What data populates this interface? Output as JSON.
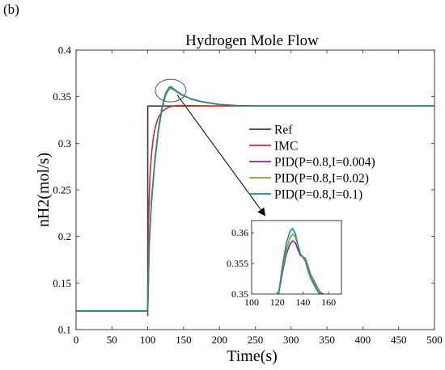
{
  "panel_label": "(b)",
  "chart_data": [
    {
      "id": "main",
      "type": "line",
      "title": "Hydrogen Mole Flow",
      "xlabel": "Time(s)",
      "ylabel": "nH2(mol/s)",
      "xlim": [
        0,
        500
      ],
      "ylim": [
        0.1,
        0.4
      ],
      "xticks": [
        0,
        50,
        100,
        150,
        200,
        250,
        300,
        350,
        400,
        450,
        500
      ],
      "yticks": [
        0.1,
        0.15,
        0.2,
        0.25,
        0.3,
        0.35,
        0.4
      ],
      "ytick_labels": [
        "0.1",
        "0.15",
        "0.2",
        "0.25",
        "0.3",
        "0.35",
        "0.4"
      ],
      "grid": false,
      "legend_position": "center-right",
      "series": [
        {
          "name": "Ref",
          "color": "#3a3a3a",
          "x": [
            0,
            100,
            100,
            500
          ],
          "y": [
            0.12,
            0.12,
            0.34,
            0.34
          ]
        },
        {
          "name": "IMC",
          "color": "#d62728",
          "x": [
            0,
            100,
            100,
            101,
            103,
            105,
            108,
            111,
            115,
            120,
            125,
            130,
            140,
            150,
            170,
            200,
            300,
            500
          ],
          "y": [
            0.12,
            0.12,
            0.115,
            0.215,
            0.262,
            0.287,
            0.307,
            0.319,
            0.328,
            0.334,
            0.337,
            0.339,
            0.3405,
            0.3405,
            0.3402,
            0.34,
            0.34,
            0.34
          ]
        },
        {
          "name": "PID(P=0.8,I=0.004)",
          "color": "#7e2f8e",
          "x": [
            0,
            100,
            100,
            102,
            105,
            110,
            115,
            120,
            125,
            130,
            133,
            136,
            140,
            145,
            150,
            160,
            175,
            200,
            225,
            250,
            300,
            400,
            500
          ],
          "y": [
            0.12,
            0.12,
            0.12,
            0.19,
            0.235,
            0.281,
            0.314,
            0.337,
            0.352,
            0.3585,
            0.359,
            0.3575,
            0.3555,
            0.353,
            0.351,
            0.3475,
            0.3445,
            0.3415,
            0.3405,
            0.34,
            0.34,
            0.34,
            0.34
          ]
        },
        {
          "name": "PID(P=0.8,I=0.02)",
          "color": "#77ac30",
          "x": [
            0,
            100,
            100,
            102,
            105,
            110,
            115,
            120,
            125,
            130,
            133,
            136,
            140,
            145,
            150,
            160,
            175,
            200,
            225,
            250,
            300,
            400,
            500
          ],
          "y": [
            0.12,
            0.12,
            0.12,
            0.19,
            0.236,
            0.282,
            0.315,
            0.338,
            0.353,
            0.3592,
            0.3597,
            0.358,
            0.3558,
            0.3532,
            0.3512,
            0.3476,
            0.3446,
            0.3416,
            0.3405,
            0.34,
            0.34,
            0.34,
            0.34
          ]
        },
        {
          "name": "PID(P=0.8,I=0.1)",
          "color": "#1f8a8a",
          "x": [
            0,
            100,
            100,
            102,
            105,
            110,
            115,
            120,
            125,
            130,
            133,
            136,
            140,
            145,
            150,
            160,
            175,
            200,
            225,
            250,
            300,
            400,
            500
          ],
          "y": [
            0.12,
            0.12,
            0.12,
            0.19,
            0.237,
            0.283,
            0.316,
            0.339,
            0.354,
            0.3603,
            0.3606,
            0.3585,
            0.3562,
            0.3535,
            0.3513,
            0.3478,
            0.3447,
            0.3416,
            0.3405,
            0.34,
            0.34,
            0.34,
            0.34
          ]
        }
      ]
    },
    {
      "id": "inset",
      "type": "line",
      "xlim": [
        100,
        170
      ],
      "ylim": [
        0.35,
        0.362
      ],
      "xticks": [
        100,
        120,
        140,
        160
      ],
      "yticks": [
        0.35,
        0.355,
        0.36
      ],
      "ytick_labels": [
        "0.35",
        "0.355",
        "0.36"
      ],
      "grid": false,
      "series": [
        {
          "color": "#7e2f8e",
          "x": [
            121,
            124,
            127,
            130,
            132,
            134,
            136,
            138,
            140,
            142,
            144,
            146,
            148,
            150,
            152,
            154,
            156
          ],
          "y": [
            0.35,
            0.3535,
            0.3565,
            0.3582,
            0.3587,
            0.3584,
            0.3573,
            0.3563,
            0.3561,
            0.3558,
            0.3545,
            0.3532,
            0.3524,
            0.3516,
            0.3508,
            0.3502,
            0.35
          ]
        },
        {
          "color": "#77ac30",
          "x": [
            121,
            124,
            127,
            130,
            132,
            134,
            136,
            138,
            140,
            142,
            144,
            146,
            148,
            150,
            152,
            154,
            156
          ],
          "y": [
            0.35,
            0.354,
            0.3572,
            0.3592,
            0.3598,
            0.3594,
            0.358,
            0.3565,
            0.3561,
            0.3556,
            0.3542,
            0.353,
            0.3522,
            0.3514,
            0.3507,
            0.35,
            0.3498
          ]
        },
        {
          "color": "#1f8a8a",
          "x": [
            121,
            124,
            127,
            130,
            132,
            134,
            136,
            138,
            140,
            142,
            144,
            146,
            148,
            150,
            152,
            154,
            156
          ],
          "y": [
            0.35,
            0.3546,
            0.3582,
            0.3603,
            0.3607,
            0.3599,
            0.3581,
            0.3565,
            0.356,
            0.3553,
            0.3538,
            0.3526,
            0.3518,
            0.351,
            0.3503,
            0.3497,
            0.3495
          ]
        }
      ]
    }
  ]
}
